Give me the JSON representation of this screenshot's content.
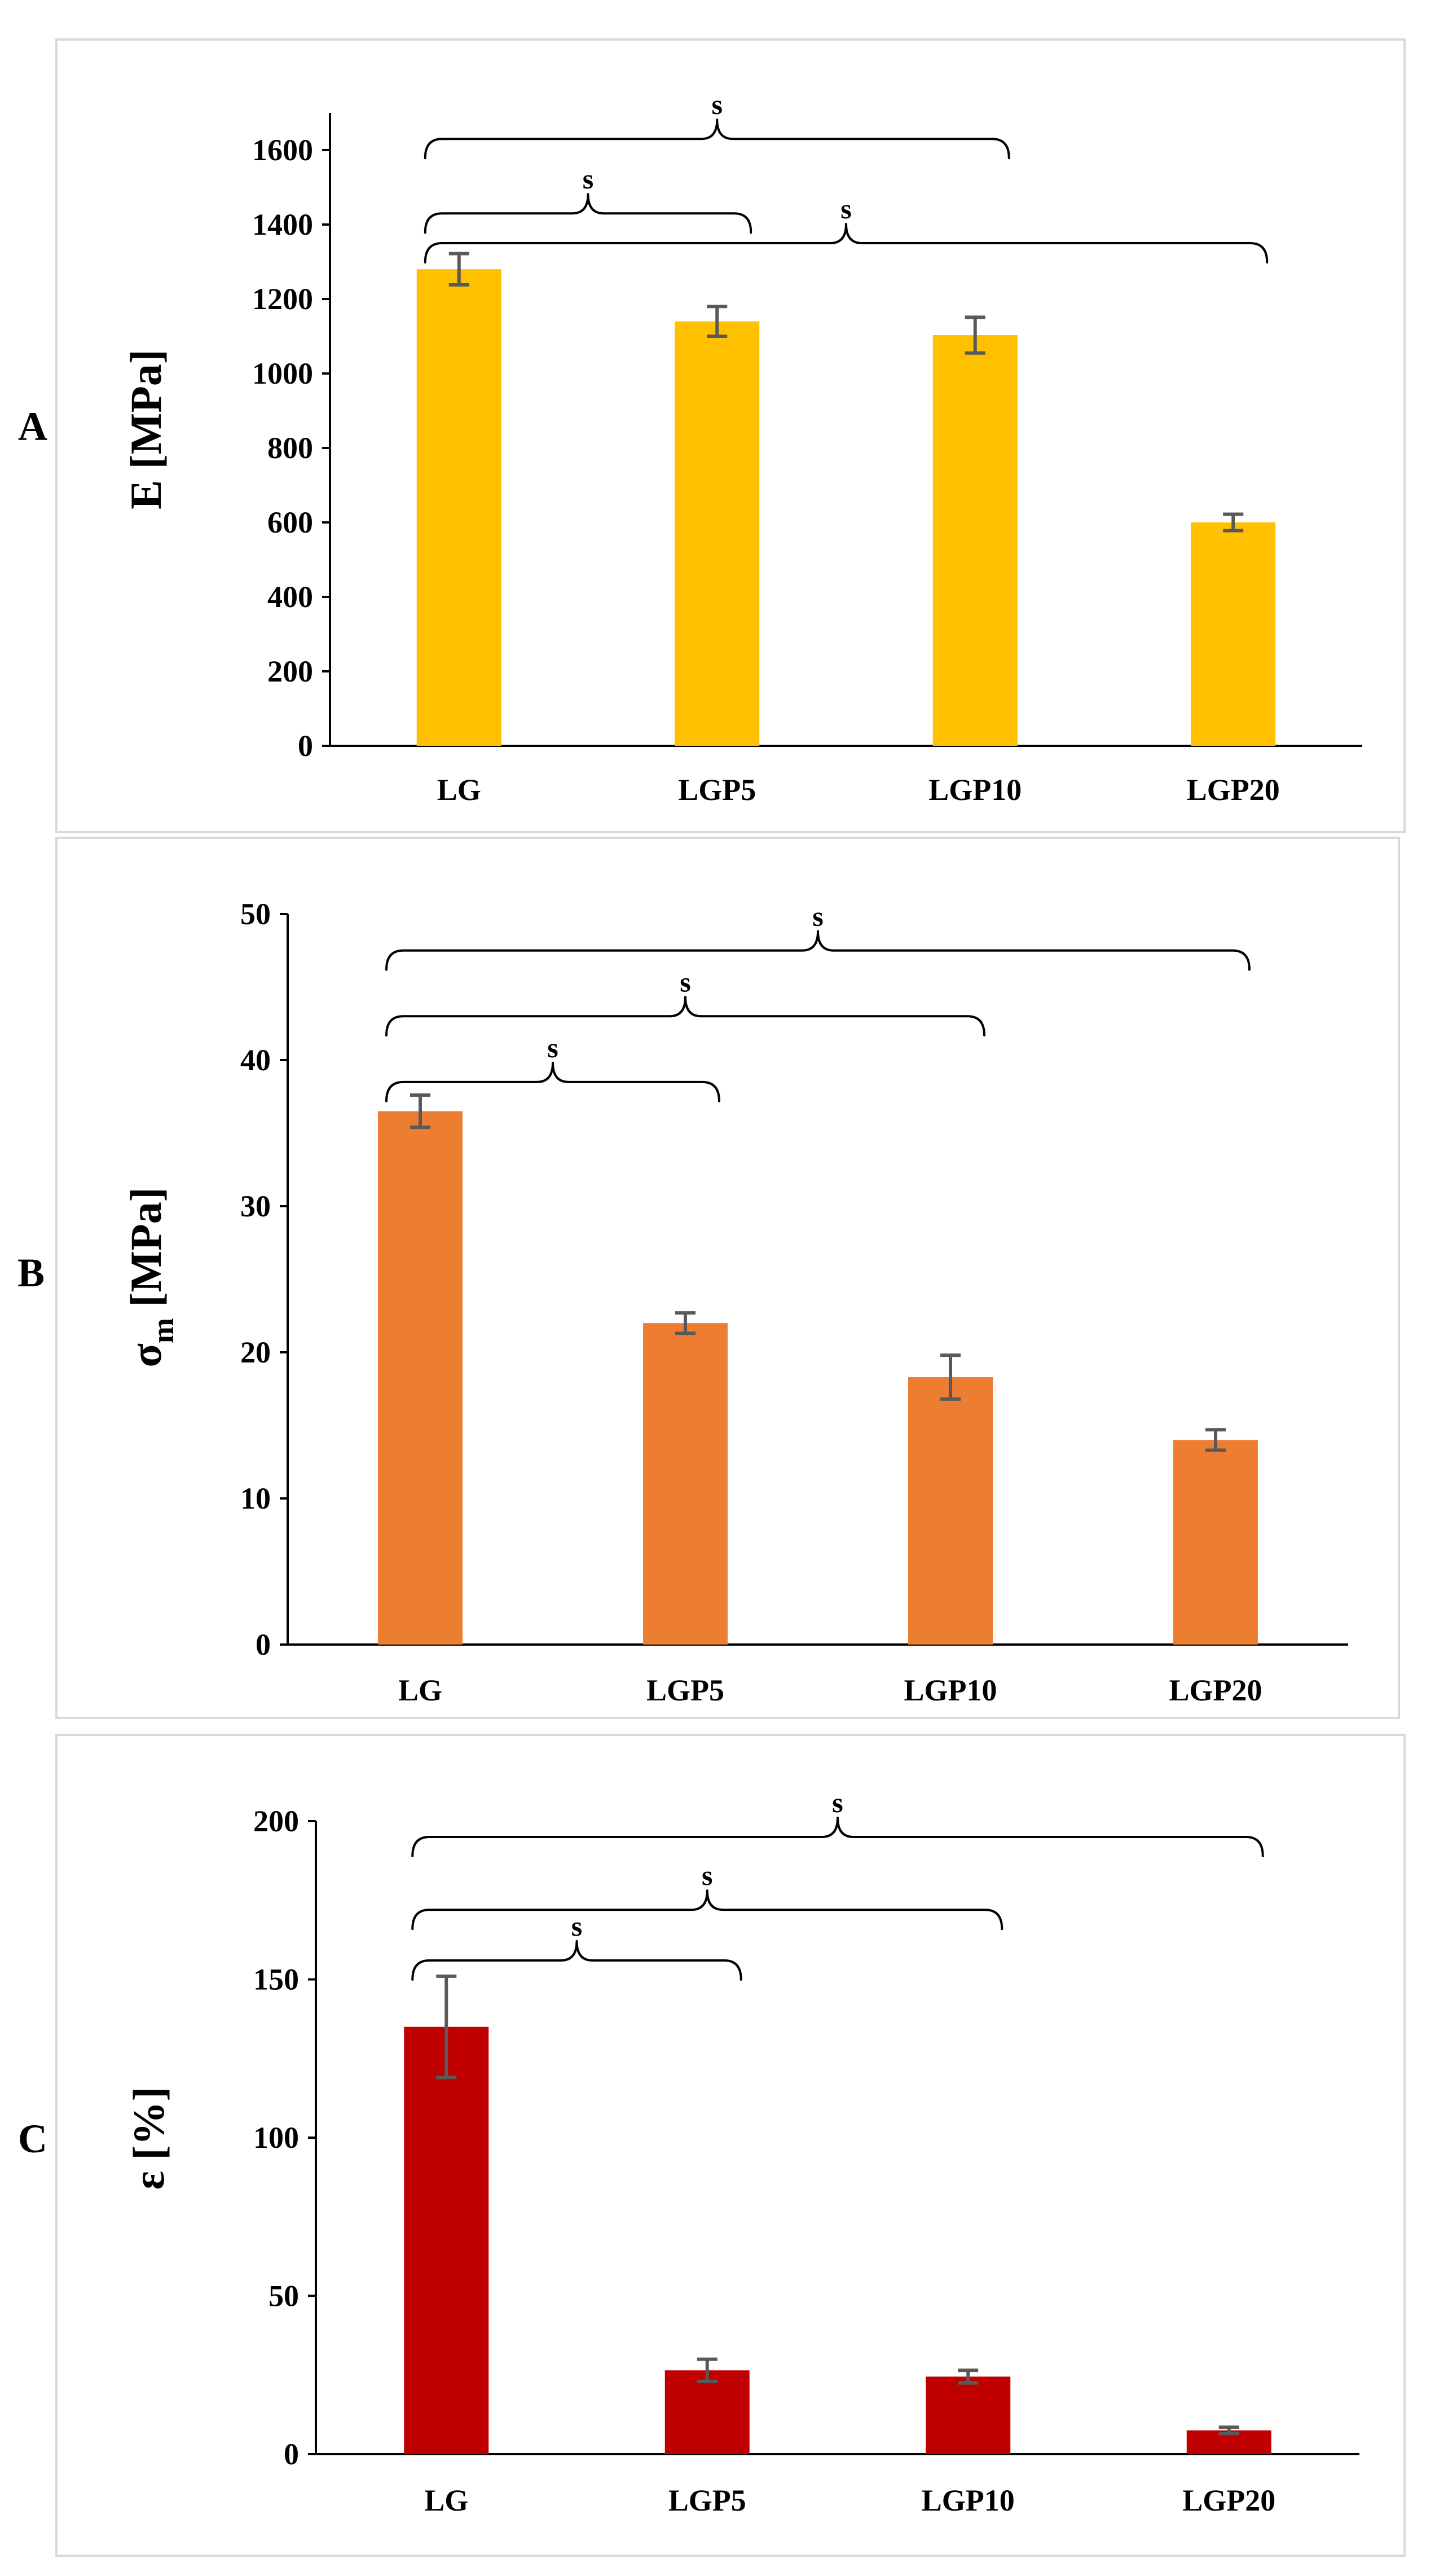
{
  "chart_data": [
    {
      "type": "bar",
      "panel_label": "A",
      "categories": [
        "LG",
        "LGP5",
        "LGP10",
        "LGP20"
      ],
      "values": [
        1280,
        1140,
        1103,
        600
      ],
      "errors": [
        42,
        40,
        48,
        22
      ],
      "ylabel": "E [MPa]",
      "ylabel_main": "E [MPa]",
      "ylabel_sub": "",
      "ylabel_rest": "",
      "xlabel": "",
      "ylim": [
        0,
        1700
      ],
      "yticks": [
        0,
        200,
        400,
        600,
        800,
        1000,
        1200,
        1400,
        1600
      ],
      "color": "#FFC000",
      "grid": false,
      "significance": [
        {
          "from": 0,
          "to": 2,
          "label": "s",
          "y": 1630
        },
        {
          "from": 0,
          "to": 1,
          "label": "s",
          "y": 1430
        },
        {
          "from": 0,
          "to": 3,
          "label": "s",
          "y": 1350
        }
      ]
    },
    {
      "type": "bar",
      "panel_label": "B",
      "categories": [
        "LG",
        "LGP5",
        "LGP10",
        "LGP20"
      ],
      "values": [
        36.5,
        22.0,
        18.3,
        14.0
      ],
      "errors": [
        1.1,
        0.7,
        1.5,
        0.7
      ],
      "ylabel": "σm [MPa]",
      "ylabel_main": "σ",
      "ylabel_sub": "m",
      "ylabel_rest": " [MPa]",
      "xlabel": "",
      "ylim": [
        0,
        50
      ],
      "yticks": [
        0,
        10,
        20,
        30,
        40,
        50
      ],
      "color": "#ED7D31",
      "grid": false,
      "significance": [
        {
          "from": 0,
          "to": 3,
          "label": "s",
          "y": 47.5
        },
        {
          "from": 0,
          "to": 2,
          "label": "s",
          "y": 43
        },
        {
          "from": 0,
          "to": 1,
          "label": "s",
          "y": 38.5
        }
      ]
    },
    {
      "type": "bar",
      "panel_label": "C",
      "categories": [
        "LG",
        "LGP5",
        "LGP10",
        "LGP20"
      ],
      "values": [
        135,
        26.5,
        24.5,
        7.5
      ],
      "errors": [
        16,
        3.5,
        2,
        1
      ],
      "ylabel": "ε [%]",
      "ylabel_main": "ε [%]",
      "ylabel_sub": "",
      "ylabel_rest": "",
      "xlabel": "",
      "ylim": [
        0,
        200
      ],
      "yticks": [
        0,
        50,
        100,
        150,
        200
      ],
      "color": "#C00000",
      "grid": false,
      "significance": [
        {
          "from": 0,
          "to": 3,
          "label": "s",
          "y": 195
        },
        {
          "from": 0,
          "to": 2,
          "label": "s",
          "y": 172
        },
        {
          "from": 0,
          "to": 1,
          "label": "s",
          "y": 156
        }
      ]
    }
  ]
}
